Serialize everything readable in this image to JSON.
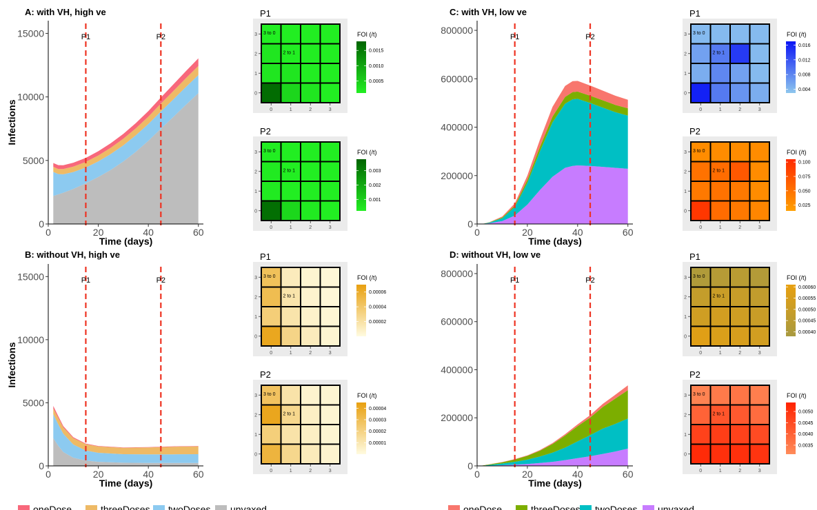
{
  "chart_data": [
    {
      "id": "A",
      "type": "area",
      "stacked": true,
      "title": "A: with VH, high ve",
      "xlabel": "Time (days)",
      "ylabel": "Infections",
      "xlim": [
        0,
        62
      ],
      "ylim": [
        0,
        16000
      ],
      "xticks": [
        0,
        20,
        40,
        60
      ],
      "yticks": [
        0,
        5000,
        10000,
        15000
      ],
      "x": [
        2,
        4,
        6,
        10,
        15,
        20,
        25,
        30,
        35,
        40,
        45,
        50,
        55,
        60
      ],
      "series": [
        {
          "name": "unvaxed",
          "values": [
            2200,
            2330,
            2460,
            2760,
            3200,
            3700,
            4260,
            4920,
            5680,
            6550,
            7500,
            8430,
            9380,
            10300
          ]
        },
        {
          "name": "twoDoses",
          "values": [
            1900,
            1600,
            1450,
            1330,
            1240,
            1230,
            1250,
            1270,
            1300,
            1320,
            1350,
            1380,
            1400,
            1420
          ]
        },
        {
          "name": "threeDoses",
          "values": [
            400,
            400,
            410,
            420,
            440,
            460,
            490,
            520,
            550,
            580,
            620,
            660,
            690,
            720
          ]
        },
        {
          "name": "oneDose",
          "values": [
            300,
            300,
            300,
            310,
            320,
            340,
            360,
            380,
            410,
            440,
            480,
            520,
            560,
            600
          ]
        }
      ],
      "vlines": [
        {
          "x": 15,
          "label": "P1"
        },
        {
          "x": 45,
          "label": "P2"
        }
      ]
    },
    {
      "id": "B",
      "type": "area",
      "stacked": true,
      "title": "B: without VH, high ve",
      "xlabel": "Time (days)",
      "ylabel": "Infections",
      "xlim": [
        0,
        62
      ],
      "ylim": [
        0,
        16000
      ],
      "xticks": [
        0,
        20,
        40,
        60
      ],
      "yticks": [
        0,
        5000,
        10000,
        15000
      ],
      "x": [
        2,
        4,
        6,
        10,
        15,
        20,
        30,
        40,
        50,
        60
      ],
      "series": [
        {
          "name": "unvaxed",
          "values": [
            2200,
            1600,
            1100,
            650,
            420,
            320,
            250,
            230,
            230,
            230
          ]
        },
        {
          "name": "twoDoses",
          "values": [
            1900,
            1700,
            1450,
            1050,
            800,
            720,
            680,
            680,
            690,
            700
          ]
        },
        {
          "name": "threeDoses",
          "values": [
            450,
            500,
            500,
            500,
            500,
            500,
            500,
            550,
            600,
            620
          ]
        },
        {
          "name": "oneDose",
          "values": [
            200,
            150,
            100,
            70,
            50,
            40,
            30,
            30,
            30,
            30
          ]
        }
      ],
      "vlines": [
        {
          "x": 15,
          "label": "P1"
        },
        {
          "x": 45,
          "label": "P2"
        }
      ]
    },
    {
      "id": "C",
      "type": "area",
      "stacked": true,
      "title": "C: with VH, low ve",
      "xlabel": "Time (days)",
      "ylabel": "",
      "xlim": [
        0,
        62
      ],
      "ylim": [
        0,
        840000
      ],
      "xticks": [
        0,
        20,
        40,
        60
      ],
      "yticks": [
        0,
        200000,
        400000,
        600000,
        800000
      ],
      "x": [
        2,
        5,
        10,
        15,
        20,
        25,
        30,
        35,
        38,
        40,
        45,
        50,
        55,
        60
      ],
      "series": [
        {
          "name": "unvaxed",
          "values": [
            0,
            3000,
            12000,
            35000,
            80000,
            140000,
            195000,
            232000,
            240000,
            242000,
            240000,
            236000,
            232000,
            228000
          ]
        },
        {
          "name": "twoDoses",
          "values": [
            0,
            3000,
            12000,
            35000,
            90000,
            160000,
            225000,
            265000,
            275000,
            275000,
            260000,
            245000,
            230000,
            220000
          ]
        },
        {
          "name": "threeDoses",
          "values": [
            0,
            1000,
            3000,
            6000,
            12000,
            18000,
            24000,
            28000,
            30000,
            30000,
            30000,
            30000,
            30000,
            30000
          ]
        },
        {
          "name": "oneDose",
          "values": [
            0,
            1000,
            4000,
            9000,
            18000,
            30000,
            40000,
            45000,
            45000,
            44000,
            42000,
            40000,
            38000,
            35000
          ]
        }
      ],
      "vlines": [
        {
          "x": 15,
          "label": "P1"
        },
        {
          "x": 45,
          "label": "P2"
        }
      ]
    },
    {
      "id": "D",
      "type": "area",
      "stacked": true,
      "title": "D: without VH, low ve",
      "xlabel": "Time (days)",
      "ylabel": "",
      "xlim": [
        0,
        62
      ],
      "ylim": [
        0,
        840000
      ],
      "xticks": [
        0,
        20,
        40,
        60
      ],
      "yticks": [
        0,
        200000,
        400000,
        600000,
        800000
      ],
      "x": [
        2,
        10,
        15,
        20,
        25,
        30,
        35,
        40,
        45,
        50,
        55,
        60
      ],
      "series": [
        {
          "name": "unvaxed",
          "values": [
            0,
            3000,
            5000,
            8000,
            12000,
            17000,
            24000,
            32000,
            40000,
            50000,
            60000,
            72000
          ]
        },
        {
          "name": "twoDoses",
          "values": [
            1000,
            7000,
            12000,
            18000,
            27000,
            38000,
            52000,
            70000,
            88000,
            105000,
            115000,
            125000
          ]
        },
        {
          "name": "threeDoses",
          "values": [
            500,
            5000,
            10000,
            16000,
            24000,
            36000,
            50000,
            63000,
            73000,
            90000,
            105000,
            118000
          ]
        },
        {
          "name": "oneDose",
          "values": [
            0,
            1000,
            1500,
            2000,
            3000,
            4000,
            6000,
            8000,
            10000,
            13000,
            16000,
            20000
          ]
        }
      ],
      "vlines": [
        {
          "x": 15,
          "label": "P1"
        },
        {
          "x": 45,
          "label": "P2"
        }
      ]
    },
    {
      "id": "A-P1",
      "type": "heatmap",
      "title": "P1",
      "legend_title": "FOI (/t)",
      "xticks": [
        "0",
        "1",
        "2",
        "3"
      ],
      "yticks": [
        "0",
        "1",
        "2",
        "3"
      ],
      "rows_top_to_bottom": [
        [
          0.0001,
          0.0001,
          0.0001,
          0.0001
        ],
        [
          0.0002,
          0.0001,
          0.0001,
          0.0001
        ],
        [
          0.0002,
          0.0002,
          0.0001,
          0.0001
        ],
        [
          0.0017,
          0.0004,
          0.0002,
          0.0001
        ]
      ],
      "range": [
        0.0001,
        0.0018
      ],
      "legend_ticks": [
        0.0005,
        0.001,
        0.0015
      ],
      "legend_tick_labels": [
        "0.0005",
        "0.0010",
        "0.0015"
      ],
      "color_low": "#22ee22",
      "color_high": "#006400",
      "annotations": [
        {
          "row": 0,
          "col": 0,
          "text": "3 to 0"
        },
        {
          "row": 1,
          "col": 1,
          "text": "2 to 1"
        }
      ]
    },
    {
      "id": "A-P2",
      "type": "heatmap",
      "title": "P2",
      "legend_title": "FOI (/t)",
      "xticks": [
        "0",
        "1",
        "2",
        "3"
      ],
      "yticks": [
        "0",
        "1",
        "2",
        "3"
      ],
      "rows_top_to_bottom": [
        [
          0.0002,
          0.0001,
          0.0001,
          0.0001
        ],
        [
          0.0003,
          0.0002,
          0.0001,
          0.0001
        ],
        [
          0.0003,
          0.0002,
          0.0002,
          0.0001
        ],
        [
          0.0035,
          0.0008,
          0.0003,
          0.0002
        ]
      ],
      "range": [
        0.0002,
        0.0038
      ],
      "legend_ticks": [
        0.001,
        0.002,
        0.003
      ],
      "legend_tick_labels": [
        "0.001",
        "0.002",
        "0.003"
      ],
      "color_low": "#22ee22",
      "color_high": "#006400",
      "annotations": [
        {
          "row": 0,
          "col": 0,
          "text": "3 to 0"
        },
        {
          "row": 1,
          "col": 1,
          "text": "2 to 1"
        }
      ]
    },
    {
      "id": "B-P1",
      "type": "heatmap",
      "title": "P1",
      "legend_title": "FOI (/t)",
      "xticks": [
        "0",
        "1",
        "2",
        "3"
      ],
      "yticks": [
        "0",
        "1",
        "2",
        "3"
      ],
      "rows_top_to_bottom": [
        [
          4.5e-05,
          1.2e-05,
          5e-06,
          3e-06
        ],
        [
          4.8e-05,
          1.8e-05,
          6e-06,
          3e-06
        ],
        [
          3.5e-05,
          1.8e-05,
          7e-06,
          4e-06
        ],
        [
          6.5e-05,
          3e-05,
          1.2e-05,
          5e-06
        ]
      ],
      "range": [
        0.0,
        7e-05
      ],
      "legend_ticks": [
        2e-05,
        4e-05,
        6e-05
      ],
      "legend_tick_labels": [
        "0.00002",
        "0.00004",
        "0.00006"
      ],
      "color_low": "#fffbe0",
      "color_high": "#e8a010",
      "annotations": [
        {
          "row": 0,
          "col": 0,
          "text": "3 to 0"
        },
        {
          "row": 1,
          "col": 1,
          "text": "2 to 1"
        }
      ]
    },
    {
      "id": "B-P2",
      "type": "heatmap",
      "title": "P2",
      "legend_title": "FOI (/t)",
      "xticks": [
        "0",
        "1",
        "2",
        "3"
      ],
      "yticks": [
        "0",
        "1",
        "2",
        "3"
      ],
      "rows_top_to_bottom": [
        [
          2.8e-05,
          1.2e-05,
          4e-06,
          3e-06
        ],
        [
          4.2e-05,
          1.8e-05,
          6e-06,
          3e-06
        ],
        [
          2.2e-05,
          1.2e-05,
          6e-06,
          3e-06
        ],
        [
          3.5e-05,
          1.8e-05,
          8e-06,
          4e-06
        ]
      ],
      "range": [
        0.0,
        4.5e-05
      ],
      "legend_ticks": [
        1e-05,
        2e-05,
        3e-05,
        4e-05
      ],
      "legend_tick_labels": [
        "0.00001",
        "0.00002",
        "0.00003",
        "0.00004"
      ],
      "color_low": "#fffbe0",
      "color_high": "#e8a010",
      "annotations": [
        {
          "row": 0,
          "col": 0,
          "text": "3 to 0"
        },
        {
          "row": 1,
          "col": 1,
          "text": "2 to 1"
        }
      ]
    },
    {
      "id": "C-P1",
      "type": "heatmap",
      "title": "P1",
      "legend_title": "FOI (/t)",
      "xticks": [
        "0",
        "1",
        "2",
        "3"
      ],
      "yticks": [
        "0",
        "1",
        "2",
        "3"
      ],
      "rows_top_to_bottom": [
        [
          0.004,
          0.004,
          0.004,
          0.004
        ],
        [
          0.006,
          0.009,
          0.014,
          0.004
        ],
        [
          0.005,
          0.008,
          0.006,
          0.004
        ],
        [
          0.016,
          0.009,
          0.007,
          0.005
        ]
      ],
      "range": [
        0.003,
        0.017
      ],
      "legend_ticks": [
        0.004,
        0.008,
        0.012,
        0.016
      ],
      "legend_tick_labels": [
        "0.004",
        "0.008",
        "0.012",
        "0.016"
      ],
      "color_low": "#8ec7ee",
      "color_high": "#0a14f5",
      "annotations": [
        {
          "row": 0,
          "col": 0,
          "text": "3 to 0"
        },
        {
          "row": 1,
          "col": 1,
          "text": "2 to 1"
        }
      ]
    },
    {
      "id": "C-P2",
      "type": "heatmap",
      "title": "P2",
      "legend_title": "FOI (/t)",
      "xticks": [
        "0",
        "1",
        "2",
        "3"
      ],
      "yticks": [
        "0",
        "1",
        "2",
        "3"
      ],
      "rows_top_to_bottom": [
        [
          0.03,
          0.03,
          0.03,
          0.03
        ],
        [
          0.05,
          0.055,
          0.07,
          0.03
        ],
        [
          0.045,
          0.05,
          0.045,
          0.03
        ],
        [
          0.095,
          0.055,
          0.045,
          0.035
        ]
      ],
      "range": [
        0.015,
        0.105
      ],
      "legend_ticks": [
        0.025,
        0.05,
        0.075,
        0.1
      ],
      "legend_tick_labels": [
        "0.025",
        "0.050",
        "0.075",
        "0.100"
      ],
      "color_low": "#ffa000",
      "color_high": "#ff2a00",
      "annotations": [
        {
          "row": 0,
          "col": 0,
          "text": "3 to 0"
        },
        {
          "row": 1,
          "col": 1,
          "text": "2 to 1"
        }
      ]
    },
    {
      "id": "D-P1",
      "type": "heatmap",
      "title": "P1",
      "legend_title": "FOI (/t)",
      "xticks": [
        "0",
        "1",
        "2",
        "3"
      ],
      "yticks": [
        "0",
        "1",
        "2",
        "3"
      ],
      "rows_top_to_bottom": [
        [
          0.00041,
          0.00043,
          0.00044,
          0.00042
        ],
        [
          0.00048,
          0.0005,
          0.00049,
          0.00047
        ],
        [
          0.00052,
          0.00053,
          0.00052,
          0.0005
        ],
        [
          0.00058,
          0.00056,
          0.00055,
          0.00053
        ]
      ],
      "range": [
        0.00038,
        0.00061
      ],
      "legend_ticks": [
        0.0004,
        0.00045,
        0.0005,
        0.00055,
        0.0006
      ],
      "legend_tick_labels": [
        "0.00040",
        "0.00045",
        "0.00050",
        "0.00055",
        "0.00060"
      ],
      "color_low": "#a89a40",
      "color_high": "#e8a010",
      "annotations": [
        {
          "row": 0,
          "col": 0,
          "text": "3 to 0"
        },
        {
          "row": 1,
          "col": 1,
          "text": "2 to 1"
        }
      ]
    },
    {
      "id": "D-P2",
      "type": "heatmap",
      "title": "P2",
      "legend_title": "FOI (/t)",
      "xticks": [
        "0",
        "1",
        "2",
        "3"
      ],
      "yticks": [
        "0",
        "1",
        "2",
        "3"
      ],
      "rows_top_to_bottom": [
        [
          0.0033,
          0.0035,
          0.0036,
          0.0034
        ],
        [
          0.004,
          0.0043,
          0.0042,
          0.0038
        ],
        [
          0.0047,
          0.0048,
          0.0047,
          0.0045
        ],
        [
          0.0052,
          0.0051,
          0.0051,
          0.005
        ]
      ],
      "range": [
        0.0031,
        0.0054
      ],
      "legend_ticks": [
        0.0035,
        0.004,
        0.0045,
        0.005
      ],
      "legend_tick_labels": [
        "0.0035",
        "0.0040",
        "0.0045",
        "0.0050"
      ],
      "color_low": "#ff8c5a",
      "color_high": "#ff2200",
      "annotations": [
        {
          "row": 0,
          "col": 0,
          "text": "3 to 0"
        },
        {
          "row": 1,
          "col": 1,
          "text": "2 to 1"
        }
      ]
    }
  ],
  "legends": {
    "high_ve": [
      {
        "name": "oneDose",
        "color": "#f8687b"
      },
      {
        "name": "threeDoses",
        "color": "#eeba66"
      },
      {
        "name": "twoDoses",
        "color": "#8ccaf0"
      },
      {
        "name": "unvaxed",
        "color": "#bdbdbd"
      }
    ],
    "low_ve": [
      {
        "name": "oneDose",
        "color": "#f8766d"
      },
      {
        "name": "threeDoses",
        "color": "#7cae00"
      },
      {
        "name": "twoDoses",
        "color": "#00bfc4"
      },
      {
        "name": "unvaxed",
        "color": "#c77cff"
      }
    ]
  },
  "colors": {
    "vline": "#ee3322",
    "heatmap_panel_bg": "#ebebeb",
    "cell_border": "#000000"
  }
}
